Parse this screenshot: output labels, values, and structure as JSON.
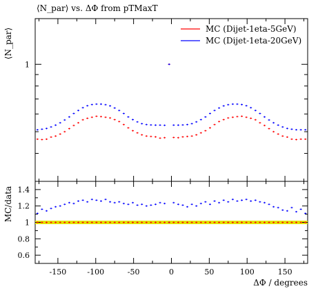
{
  "chart_data": [
    {
      "type": "scatter",
      "title": "⟨N_par⟩ vs. ΔΦ from pTMaxT",
      "ylabel": "⟨N_par⟩",
      "xlabel": "",
      "xlim": [
        -180,
        180
      ],
      "ylim": [
        0.3,
        1.6
      ],
      "y_scale": "log",
      "y_tick_labels": [
        "1"
      ],
      "y_tick_values": [
        1
      ],
      "legend_position": "top-right",
      "x": [
        -177,
        -171,
        -165,
        -159,
        -153,
        -147,
        -141,
        -135,
        -129,
        -123,
        -117,
        -111,
        -105,
        -99,
        -93,
        -87,
        -81,
        -75,
        -69,
        -63,
        -57,
        -51,
        -45,
        -39,
        -33,
        -27,
        -21,
        -15,
        -9,
        -3,
        3,
        9,
        15,
        21,
        27,
        33,
        39,
        45,
        51,
        57,
        63,
        69,
        75,
        81,
        87,
        93,
        99,
        105,
        111,
        117,
        123,
        129,
        135,
        141,
        147,
        153,
        159,
        165,
        171,
        177
      ],
      "series": [
        {
          "name": "MC (Dijet-1eta-5GeV)",
          "color": "#ff0000",
          "values": [
            0.463,
            0.461,
            0.463,
            0.473,
            0.478,
            0.488,
            0.5,
            0.516,
            0.533,
            0.548,
            0.565,
            0.574,
            0.58,
            0.586,
            0.584,
            0.58,
            0.576,
            0.566,
            0.555,
            0.538,
            0.52,
            0.505,
            0.494,
            0.484,
            0.478,
            0.476,
            0.474,
            0.468,
            0.47,
            1.0,
            0.471,
            0.47,
            0.474,
            0.476,
            0.478,
            0.484,
            0.494,
            0.505,
            0.52,
            0.538,
            0.555,
            0.566,
            0.576,
            0.58,
            0.584,
            0.586,
            0.58,
            0.574,
            0.565,
            0.548,
            0.533,
            0.516,
            0.5,
            0.488,
            0.478,
            0.473,
            0.463,
            0.461,
            0.463,
            0.463
          ]
        },
        {
          "name": "MC (Dijet-1eta-20GeV)",
          "color": "#0000ff",
          "values": [
            0.51,
            0.513,
            0.517,
            0.525,
            0.535,
            0.548,
            0.564,
            0.582,
            0.603,
            0.622,
            0.64,
            0.653,
            0.661,
            0.664,
            0.664,
            0.66,
            0.652,
            0.638,
            0.622,
            0.603,
            0.582,
            0.566,
            0.553,
            0.543,
            0.538,
            0.536,
            0.535,
            0.535,
            0.534,
            1.0,
            0.535,
            0.535,
            0.536,
            0.538,
            0.543,
            0.553,
            0.566,
            0.582,
            0.603,
            0.622,
            0.638,
            0.652,
            0.66,
            0.664,
            0.664,
            0.661,
            0.653,
            0.64,
            0.622,
            0.603,
            0.582,
            0.564,
            0.548,
            0.535,
            0.525,
            0.517,
            0.513,
            0.51,
            0.51,
            0.51
          ]
        }
      ]
    },
    {
      "type": "scatter",
      "title": "",
      "ylabel": "MC/data",
      "xlabel": "ΔΦ / degrees",
      "xlim": [
        -180,
        180
      ],
      "ylim": [
        0.5,
        1.5
      ],
      "y_tick_labels": [
        "0.6",
        "0.8",
        "1",
        "1.2",
        "1.4"
      ],
      "y_tick_values": [
        0.6,
        0.8,
        1.0,
        1.2,
        1.4
      ],
      "x_tick_labels": [
        "-150",
        "-100",
        "-50",
        "0",
        "50",
        "100",
        "150"
      ],
      "x_tick_values": [
        -150,
        -100,
        -50,
        0,
        50,
        100,
        150
      ],
      "reference_band": {
        "value": 1.0,
        "color": "#e2e200"
      },
      "x": [
        -177,
        -171,
        -165,
        -159,
        -153,
        -147,
        -141,
        -135,
        -129,
        -123,
        -117,
        -111,
        -105,
        -99,
        -93,
        -87,
        -81,
        -75,
        -69,
        -63,
        -57,
        -51,
        -45,
        -39,
        -33,
        -27,
        -21,
        -15,
        -9,
        -3,
        3,
        9,
        15,
        21,
        27,
        33,
        39,
        45,
        51,
        57,
        63,
        69,
        75,
        81,
        87,
        93,
        99,
        105,
        111,
        117,
        123,
        129,
        135,
        141,
        147,
        153,
        159,
        165,
        171,
        177
      ],
      "series": [
        {
          "name": "MC (Dijet-1eta-20GeV)",
          "color": "#0000ff",
          "values": [
            1.11,
            1.16,
            1.14,
            1.17,
            1.19,
            1.2,
            1.22,
            1.24,
            1.23,
            1.26,
            1.27,
            1.25,
            1.28,
            1.27,
            1.26,
            1.28,
            1.25,
            1.24,
            1.25,
            1.23,
            1.22,
            1.24,
            1.21,
            1.22,
            1.2,
            1.21,
            1.22,
            1.24,
            1.23,
            1.0,
            1.24,
            1.22,
            1.21,
            1.19,
            1.22,
            1.2,
            1.23,
            1.25,
            1.22,
            1.26,
            1.24,
            1.27,
            1.25,
            1.28,
            1.26,
            1.27,
            1.28,
            1.26,
            1.27,
            1.25,
            1.24,
            1.22,
            1.19,
            1.18,
            1.15,
            1.14,
            1.18,
            1.13,
            1.16,
            1.11
          ]
        },
        {
          "name": "MC (Dijet-1eta-5GeV)",
          "color": "#ff0000",
          "values": [
            1.0,
            1.0,
            1.0,
            1.0,
            1.0,
            1.0,
            1.0,
            1.0,
            1.0,
            1.0,
            1.0,
            1.0,
            1.0,
            1.0,
            1.0,
            1.0,
            1.0,
            1.0,
            1.0,
            1.0,
            1.0,
            1.0,
            1.0,
            1.0,
            1.0,
            1.0,
            1.0,
            1.0,
            1.0,
            1.0,
            1.0,
            1.0,
            1.0,
            1.0,
            1.0,
            1.0,
            1.0,
            1.0,
            1.0,
            1.0,
            1.0,
            1.0,
            1.0,
            1.0,
            1.0,
            1.0,
            1.0,
            1.0,
            1.0,
            1.0,
            1.0,
            1.0,
            1.0,
            1.0,
            1.0,
            1.0,
            1.0,
            1.0,
            1.0,
            1.0
          ]
        }
      ]
    }
  ]
}
